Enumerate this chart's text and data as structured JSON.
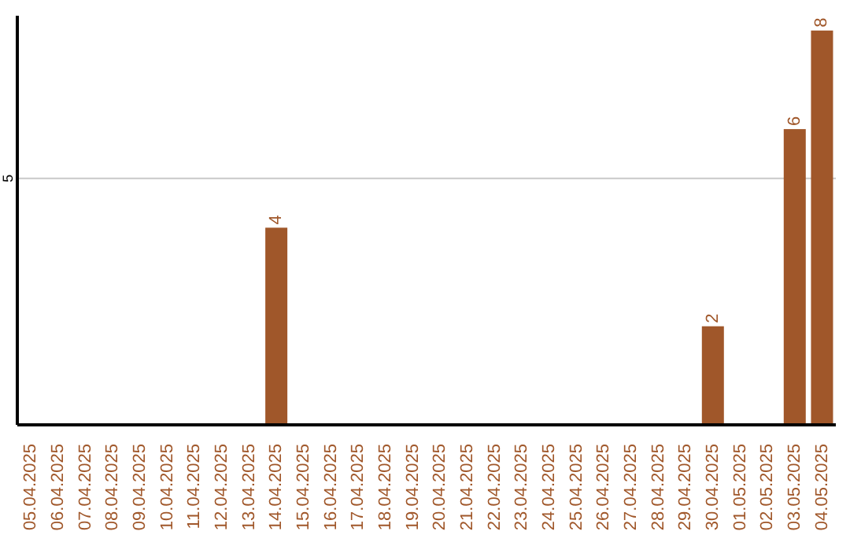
{
  "chart_data": {
    "type": "bar",
    "categories": [
      "05.04.2025",
      "06.04.2025",
      "07.04.2025",
      "08.04.2025",
      "09.04.2025",
      "10.04.2025",
      "11.04.2025",
      "12.04.2025",
      "13.04.2025",
      "14.04.2025",
      "15.04.2025",
      "16.04.2025",
      "17.04.2025",
      "18.04.2025",
      "19.04.2025",
      "20.04.2025",
      "21.04.2025",
      "22.04.2025",
      "23.04.2025",
      "24.04.2025",
      "25.04.2025",
      "26.04.2025",
      "27.04.2025",
      "28.04.2025",
      "29.04.2025",
      "30.04.2025",
      "01.05.2025",
      "02.05.2025",
      "03.05.2025",
      "04.05.2025"
    ],
    "values": [
      0,
      0,
      0,
      0,
      0,
      0,
      0,
      0,
      0,
      4,
      0,
      0,
      0,
      0,
      0,
      0,
      0,
      0,
      0,
      0,
      0,
      0,
      0,
      0,
      0,
      2,
      0,
      0,
      6,
      8
    ],
    "value_labels": [
      null,
      null,
      null,
      null,
      null,
      null,
      null,
      null,
      null,
      "4",
      null,
      null,
      null,
      null,
      null,
      null,
      null,
      null,
      null,
      null,
      null,
      null,
      null,
      null,
      null,
      "2",
      null,
      null,
      "6",
      "8"
    ],
    "color": "#a0572a",
    "ylim": [
      0,
      8.3
    ],
    "yticks": [
      5
    ],
    "grid": "y"
  }
}
